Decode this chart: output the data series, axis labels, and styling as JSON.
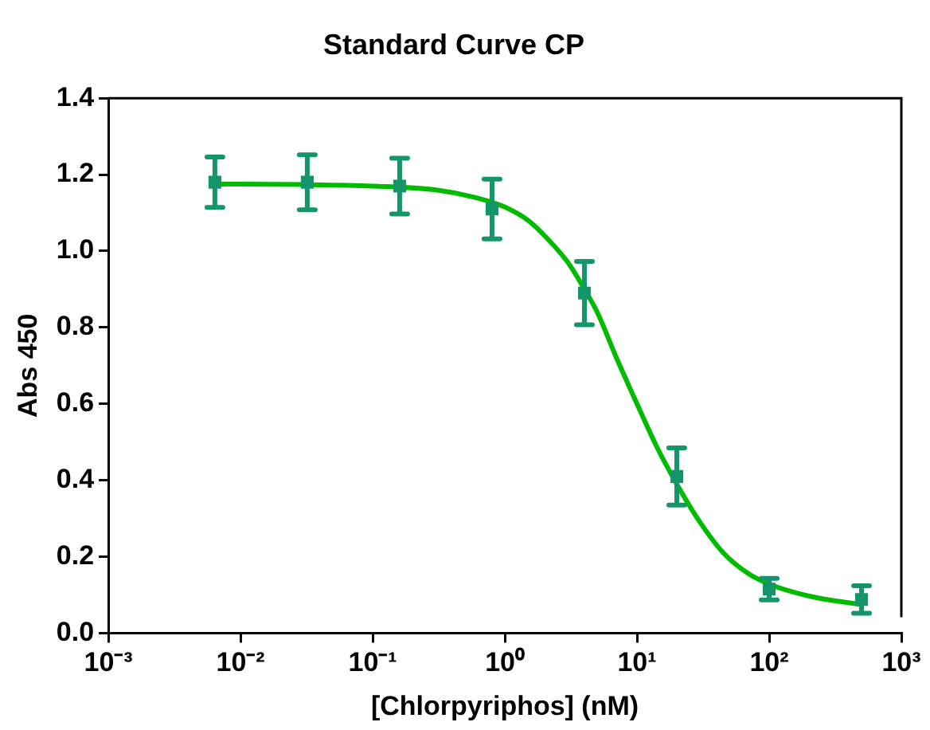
{
  "chart_data": {
    "type": "scatter",
    "title": "Standard Curve CP",
    "xlabel": "[Chlorpyriphos] (nM)",
    "ylabel": "Abs 450",
    "log": "x",
    "grid": false,
    "legend": false,
    "marker": "square",
    "xlim": [
      0.001,
      1000
    ],
    "xticks": [
      {
        "value": 0.001,
        "label": "10⁻³"
      },
      {
        "value": 0.01,
        "label": "10⁻²"
      },
      {
        "value": 0.1,
        "label": "10⁻¹"
      },
      {
        "value": 1,
        "label": "10⁰"
      },
      {
        "value": 10,
        "label": "10¹"
      },
      {
        "value": 100,
        "label": "10²"
      },
      {
        "value": 1000,
        "label": "10³"
      }
    ],
    "ylim": [
      0,
      1.4
    ],
    "yticks": [
      {
        "value": 0,
        "label": "0.0"
      },
      0.2,
      0.4,
      0.6,
      0.8,
      {
        "value": 1,
        "label": "1.0"
      },
      1.2,
      1.4
    ],
    "series": [
      {
        "type": "scatter",
        "color": "#15956a",
        "x": [
          0.0064,
          0.032,
          0.16,
          0.8,
          4,
          20,
          100,
          500
        ],
        "values": [
          1.18,
          1.18,
          1.17,
          1.11,
          0.89,
          0.41,
          0.115,
          0.088
        ],
        "errors": [
          0.066,
          0.072,
          0.073,
          0.078,
          0.083,
          0.075,
          0.028,
          0.036
        ]
      },
      {
        "type": "line",
        "color": "#00bb00",
        "line_style": "solid",
        "marker": "none",
        "x": [
          0.0064,
          0.01,
          0.03,
          0.1,
          0.3,
          0.6,
          1,
          1.5,
          2,
          3,
          4,
          5,
          7,
          10,
          14,
          20,
          30,
          45,
          70,
          100,
          150,
          250,
          500
        ],
        "values": [
          1.175,
          1.175,
          1.174,
          1.17,
          1.16,
          1.14,
          1.115,
          1.08,
          1.04,
          0.97,
          0.9,
          0.84,
          0.72,
          0.6,
          0.49,
          0.39,
          0.29,
          0.21,
          0.155,
          0.128,
          0.108,
          0.09,
          0.075
        ]
      }
    ]
  }
}
